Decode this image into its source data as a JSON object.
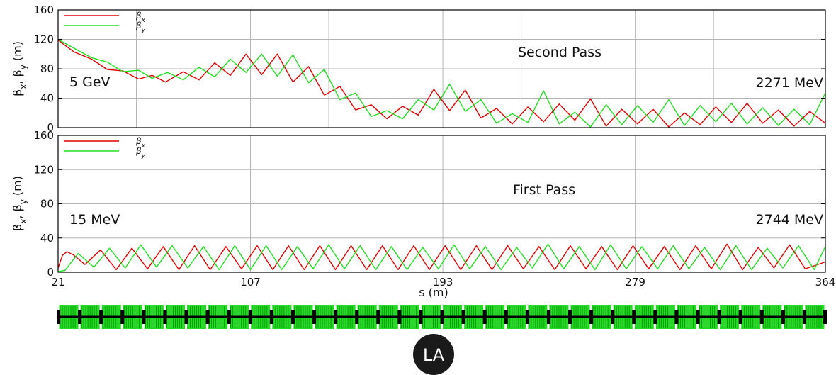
{
  "chart_data": [
    {
      "type": "line",
      "annotation_center": "Second Pass",
      "annotation_left": "5 GeV",
      "annotation_right": "2271 MeV",
      "ylabel": "β_x, β_y (m)",
      "xlim": [
        21,
        364
      ],
      "ylim": [
        0,
        160
      ],
      "yticks": [
        0,
        40,
        80,
        120,
        160
      ],
      "xgrid": [
        21,
        56,
        107,
        142,
        193,
        228,
        279,
        314,
        364
      ],
      "grid": true,
      "legend": "top-left",
      "series": [
        {
          "name": "βx",
          "color": "#e00000",
          "x": [
            21,
            28,
            36,
            43,
            50,
            57,
            63,
            69,
            77,
            84,
            91,
            98,
            105,
            112,
            119,
            126,
            133,
            140,
            147,
            154,
            161,
            168,
            175,
            182,
            189,
            196,
            203,
            210,
            217,
            224,
            231,
            238,
            245,
            252,
            259,
            266,
            273,
            280,
            287,
            294,
            301,
            308,
            315,
            322,
            329,
            336,
            343,
            350,
            357,
            364
          ],
          "y": [
            119,
            103,
            93,
            79,
            77,
            66,
            71,
            62,
            76,
            65,
            88,
            71,
            100,
            72,
            100,
            62,
            83,
            44,
            56,
            24,
            31,
            12,
            29,
            17,
            52,
            23,
            51,
            13,
            26,
            5,
            28,
            8,
            32,
            10,
            39,
            2,
            25,
            5,
            25,
            1,
            20,
            4,
            28,
            7,
            33,
            6,
            24,
            2,
            22,
            6
          ]
        },
        {
          "name": "βy",
          "color": "#22dd22",
          "x": [
            21,
            28,
            36,
            43,
            50,
            57,
            63,
            70,
            77,
            84,
            91,
            98,
            105,
            112,
            119,
            126,
            133,
            140,
            147,
            154,
            161,
            168,
            175,
            182,
            189,
            196,
            203,
            210,
            217,
            224,
            231,
            238,
            245,
            252,
            259,
            266,
            273,
            280,
            287,
            294,
            301,
            308,
            315,
            322,
            329,
            336,
            343,
            350,
            357,
            364
          ],
          "y": [
            120,
            108,
            95,
            89,
            76,
            78,
            67,
            75,
            65,
            82,
            69,
            93,
            75,
            100,
            70,
            99,
            61,
            79,
            38,
            47,
            15,
            23,
            12,
            38,
            24,
            59,
            22,
            38,
            6,
            19,
            7,
            50,
            5,
            21,
            1,
            31,
            4,
            30,
            7,
            38,
            3,
            30,
            8,
            33,
            5,
            27,
            3,
            25,
            4,
            47
          ]
        }
      ]
    },
    {
      "type": "line",
      "annotation_center": "First Pass",
      "annotation_left": "15 MeV",
      "annotation_right": "2744 MeV",
      "ylabel": "β_x, β_y (m)",
      "xlabel": "s (m)",
      "xlim": [
        21,
        364
      ],
      "ylim": [
        0,
        160
      ],
      "yticks": [
        0,
        40,
        80,
        120,
        160
      ],
      "xticks": [
        21,
        107,
        193,
        279,
        364
      ],
      "xgrid": [
        21,
        107,
        193,
        279,
        364
      ],
      "grid": true,
      "legend": "top-left",
      "series": [
        {
          "name": "βx",
          "color": "#e00000",
          "x": [
            21,
            23,
            25,
            28,
            33,
            40,
            47,
            54,
            61,
            68,
            75,
            82,
            89,
            96,
            103,
            110,
            117,
            124,
            131,
            138,
            145,
            152,
            159,
            166,
            173,
            180,
            187,
            194,
            201,
            208,
            215,
            222,
            229,
            236,
            243,
            250,
            257,
            264,
            271,
            278,
            285,
            292,
            299,
            306,
            313,
            320,
            327,
            334,
            341,
            348,
            355,
            364
          ],
          "y": [
            5,
            20,
            24,
            20,
            9,
            26,
            3,
            28,
            4,
            30,
            3,
            31,
            3,
            30,
            4,
            31,
            3,
            31,
            3,
            31,
            3,
            31,
            3,
            31,
            3,
            31,
            3,
            31,
            3,
            31,
            3,
            31,
            4,
            30,
            3,
            31,
            4,
            30,
            3,
            31,
            4,
            30,
            3,
            31,
            4,
            33,
            3,
            29,
            5,
            32,
            4,
            12
          ]
        },
        {
          "name": "βy",
          "color": "#22dd22",
          "x": [
            21,
            24,
            30,
            37,
            44,
            51,
            58,
            65,
            72,
            79,
            86,
            93,
            100,
            107,
            114,
            121,
            128,
            135,
            142,
            149,
            156,
            163,
            170,
            177,
            184,
            191,
            198,
            205,
            212,
            219,
            226,
            233,
            240,
            247,
            254,
            261,
            268,
            275,
            282,
            289,
            296,
            303,
            310,
            317,
            324,
            331,
            338,
            345,
            352,
            359,
            364
          ],
          "y": [
            1,
            2,
            22,
            6,
            28,
            5,
            32,
            6,
            31,
            5,
            30,
            3,
            31,
            3,
            31,
            3,
            30,
            4,
            32,
            4,
            31,
            3,
            30,
            3,
            29,
            4,
            32,
            4,
            30,
            3,
            29,
            5,
            33,
            4,
            30,
            3,
            32,
            4,
            30,
            4,
            31,
            4,
            29,
            3,
            31,
            3,
            28,
            5,
            31,
            3,
            30
          ]
        }
      ]
    }
  ],
  "lattice": {
    "background": "#22dd22",
    "magnet_color": "#000000",
    "cells": 36
  },
  "badge": {
    "text": "LA",
    "color": "#1a1a1a"
  }
}
